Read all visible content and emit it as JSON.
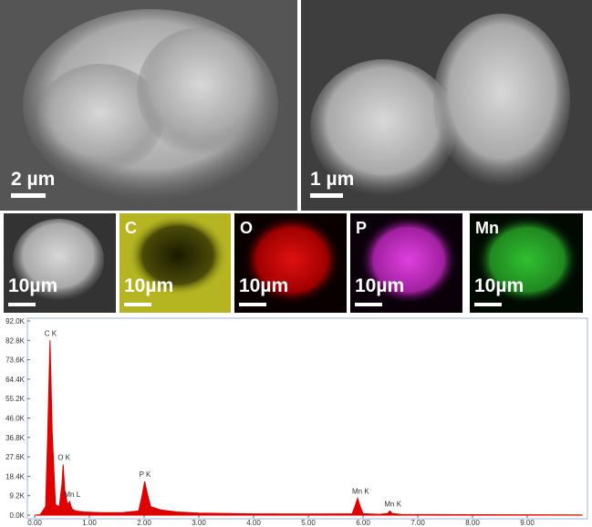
{
  "sem_images": [
    {
      "scale": "2 µm"
    },
    {
      "scale": "1 µm"
    }
  ],
  "eds_maps": [
    {
      "scale": "10µm"
    },
    {
      "element": "C",
      "scale": "10µm"
    },
    {
      "element": "O",
      "scale": "10µm"
    },
    {
      "element": "P",
      "scale": "10µm"
    },
    {
      "element": "Mn",
      "scale": "10µm"
    }
  ],
  "chart_data": {
    "type": "area",
    "color": "#e00000",
    "x": [
      0.0,
      0.1,
      0.2,
      0.24,
      0.28,
      0.32,
      0.38,
      0.45,
      0.5,
      0.52,
      0.55,
      0.6,
      0.64,
      0.68,
      0.75,
      0.9,
      1.2,
      1.6,
      1.9,
      1.96,
      2.01,
      2.06,
      2.12,
      2.3,
      2.6,
      3.0,
      4.0,
      5.0,
      5.8,
      5.85,
      5.9,
      5.95,
      6.0,
      6.3,
      6.45,
      6.49,
      6.53,
      6.7,
      8.0,
      10.0
    ],
    "values": [
      0,
      200,
      4000,
      40000,
      82800,
      40000,
      5000,
      4000,
      15000,
      24000,
      12000,
      5000,
      6500,
      3000,
      2000,
      1500,
      1200,
      1200,
      2000,
      9000,
      16000,
      10000,
      4000,
      2500,
      1500,
      1000,
      600,
      500,
      600,
      4000,
      8000,
      4000,
      700,
      400,
      800,
      2000,
      800,
      300,
      200,
      100
    ],
    "xlim": [
      0,
      10
    ],
    "ylim": [
      0,
      92000
    ],
    "xticks": [
      {
        "value": 0,
        "label": "0.00"
      },
      {
        "value": 1,
        "label": "1.00"
      },
      {
        "value": 2,
        "label": "2.00"
      },
      {
        "value": 3,
        "label": "3.00"
      },
      {
        "value": 4,
        "label": "4.00"
      },
      {
        "value": 5,
        "label": "5.00"
      },
      {
        "value": 6,
        "label": "6.00"
      },
      {
        "value": 7,
        "label": "7.00"
      },
      {
        "value": 8,
        "label": "8.00"
      },
      {
        "value": 9,
        "label": "9.00"
      }
    ],
    "yticks": [
      {
        "value": 0,
        "label": "0.0K"
      },
      {
        "value": 9200,
        "label": "9.2K"
      },
      {
        "value": 18400,
        "label": "18.4K"
      },
      {
        "value": 27600,
        "label": "27.6K"
      },
      {
        "value": 36800,
        "label": "36.8K"
      },
      {
        "value": 46000,
        "label": "46.0K"
      },
      {
        "value": 55200,
        "label": "55.2K"
      },
      {
        "value": 64400,
        "label": "64.4K"
      },
      {
        "value": 73600,
        "label": "73.6K"
      },
      {
        "value": 82800,
        "label": "82.8K"
      },
      {
        "value": 92000,
        "label": "92.0K"
      }
    ],
    "annotations": [
      {
        "text": "C K",
        "x": 0.28,
        "y": 82800
      },
      {
        "text": "O K",
        "x": 0.52,
        "y": 24000
      },
      {
        "text": "Mn L",
        "x": 0.64,
        "y": 6500
      },
      {
        "text": "P K",
        "x": 2.01,
        "y": 16000
      },
      {
        "text": "Mn K",
        "x": 5.9,
        "y": 8000
      },
      {
        "text": "Mn K",
        "x": 6.49,
        "y": 2000
      }
    ]
  }
}
